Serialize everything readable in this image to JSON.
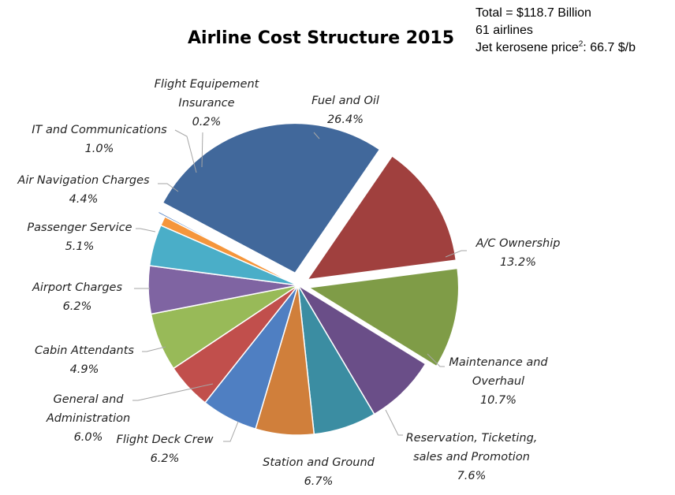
{
  "title": "Airline Cost Structure 2015",
  "info": {
    "total": "Total = $118.7 Billion",
    "airlines": "61 airlines",
    "jet_prefix": "Jet kerosene price",
    "jet_sup": "2",
    "jet_suffix": ": 66.7 $/b"
  },
  "chart_data": {
    "type": "pie",
    "title": "Airline Cost Structure 2015",
    "start_angle_deg": 0,
    "slices": [
      {
        "label": "Fuel and Oil",
        "value": 26.4,
        "value_label": "26.4%",
        "color": "#41689b",
        "exploded": true
      },
      {
        "label": "A/C Ownership",
        "value": 13.2,
        "value_label": "13.2%",
        "color": "#a0403e",
        "exploded": true
      },
      {
        "label": "Maintenance and Overhaul",
        "value": 10.7,
        "value_label": "10.7%",
        "color": "#7f9c47",
        "exploded": true
      },
      {
        "label": "Reservation, Ticketing, sales and Promotion",
        "value": 7.6,
        "value_label": "7.6%",
        "color": "#6a4e88"
      },
      {
        "label": "Station and Ground",
        "value": 6.7,
        "value_label": "6.7%",
        "color": "#3b8da2"
      },
      {
        "label": "Flight Deck Crew",
        "value": 6.2,
        "value_label": "6.2%",
        "color": "#d07f3b"
      },
      {
        "label": "General and Administration",
        "value": 6.0,
        "value_label": "6.0%",
        "color": "#4f7fc2"
      },
      {
        "label": "Cabin Attendants",
        "value": 4.9,
        "value_label": "4.9%",
        "color": "#c14f4c"
      },
      {
        "label": "Airport Charges",
        "value": 6.2,
        "value_label": "6.2%",
        "color": "#98ba58"
      },
      {
        "label": "Passenger Service",
        "value": 5.1,
        "value_label": "5.1%",
        "color": "#7f64a2"
      },
      {
        "label": "Air Navigation Charges",
        "value": 4.4,
        "value_label": "4.4%",
        "color": "#4aaec8"
      },
      {
        "label": "IT and Communications",
        "value": 1.0,
        "value_label": "1.0%",
        "color": "#f5963c"
      },
      {
        "label": "Flight Equipement Insurance",
        "value": 0.2,
        "value_label": "0.2%",
        "color": "#4a7cc0",
        "exploded": true
      }
    ]
  }
}
